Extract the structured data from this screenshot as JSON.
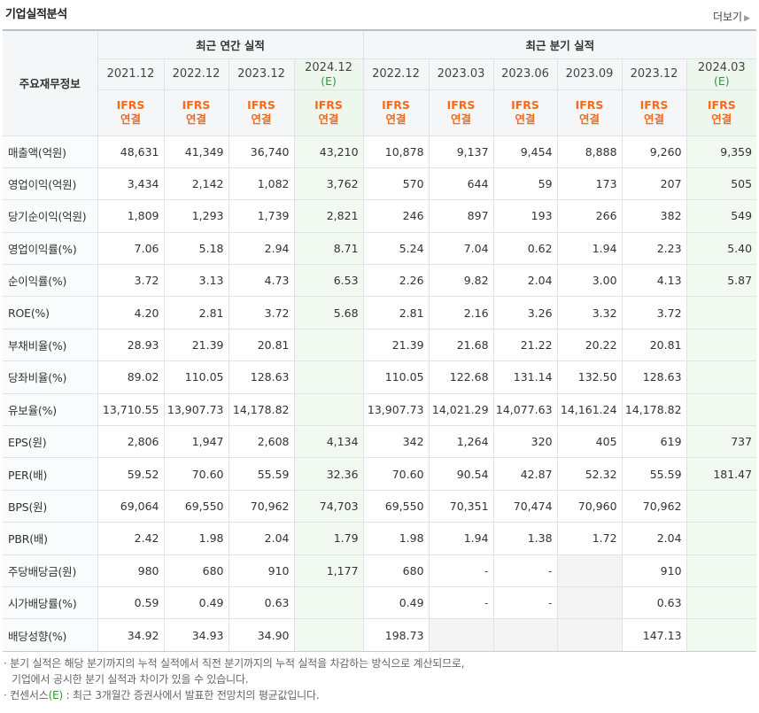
{
  "title": "기업실적분석",
  "more_label": "더보기",
  "header": {
    "row_label": "주요재무정보",
    "annual_group": "최근 연간 실적",
    "quarter_group": "최근 분기 실적",
    "annual_periods": [
      {
        "period": "2021.12",
        "est": ""
      },
      {
        "period": "2022.12",
        "est": ""
      },
      {
        "period": "2023.12",
        "est": ""
      },
      {
        "period": "2024.12",
        "est": "(E)"
      }
    ],
    "quarter_periods": [
      {
        "period": "2022.12",
        "est": ""
      },
      {
        "period": "2023.03",
        "est": ""
      },
      {
        "period": "2023.06",
        "est": ""
      },
      {
        "period": "2023.09",
        "est": ""
      },
      {
        "period": "2023.12",
        "est": ""
      },
      {
        "period": "2024.03",
        "est": "(E)"
      }
    ],
    "standard_top": "IFRS",
    "standard_bottom": "연결"
  },
  "rows": [
    {
      "label": "매출액(억원)",
      "values": [
        "48,631",
        "41,349",
        "36,740",
        "43,210",
        "10,878",
        "9,137",
        "9,454",
        "8,888",
        "9,260",
        "9,359"
      ],
      "sep": false
    },
    {
      "label": "영업이익(억원)",
      "values": [
        "3,434",
        "2,142",
        "1,082",
        "3,762",
        "570",
        "644",
        "59",
        "173",
        "207",
        "505"
      ],
      "sep": false
    },
    {
      "label": "당기순이익(억원)",
      "values": [
        "1,809",
        "1,293",
        "1,739",
        "2,821",
        "246",
        "897",
        "193",
        "266",
        "382",
        "549"
      ],
      "sep": false
    },
    {
      "label": "영업이익률(%)",
      "values": [
        "7.06",
        "5.18",
        "2.94",
        "8.71",
        "5.24",
        "7.04",
        "0.62",
        "1.94",
        "2.23",
        "5.40"
      ],
      "sep": true
    },
    {
      "label": "순이익률(%)",
      "values": [
        "3.72",
        "3.13",
        "4.73",
        "6.53",
        "2.26",
        "9.82",
        "2.04",
        "3.00",
        "4.13",
        "5.87"
      ],
      "sep": false
    },
    {
      "label": "ROE(%)",
      "values": [
        "4.20",
        "2.81",
        "3.72",
        "5.68",
        "2.81",
        "2.16",
        "3.26",
        "3.32",
        "3.72",
        ""
      ],
      "sep": false
    },
    {
      "label": "부채비율(%)",
      "values": [
        "28.93",
        "21.39",
        "20.81",
        "",
        "21.39",
        "21.68",
        "21.22",
        "20.22",
        "20.81",
        ""
      ],
      "sep": true
    },
    {
      "label": "당좌비율(%)",
      "values": [
        "89.02",
        "110.05",
        "128.63",
        "",
        "110.05",
        "122.68",
        "131.14",
        "132.50",
        "128.63",
        ""
      ],
      "sep": false
    },
    {
      "label": "유보율(%)",
      "values": [
        "13,710.55",
        "13,907.73",
        "14,178.82",
        "",
        "13,907.73",
        "14,021.29",
        "14,077.63",
        "14,161.24",
        "14,178.82",
        ""
      ],
      "sep": false
    },
    {
      "label": "EPS(원)",
      "values": [
        "2,806",
        "1,947",
        "2,608",
        "4,134",
        "342",
        "1,264",
        "320",
        "405",
        "619",
        "737"
      ],
      "sep": true
    },
    {
      "label": "PER(배)",
      "values": [
        "59.52",
        "70.60",
        "55.59",
        "32.36",
        "70.60",
        "90.54",
        "42.87",
        "52.32",
        "55.59",
        "181.47"
      ],
      "sep": false
    },
    {
      "label": "BPS(원)",
      "values": [
        "69,064",
        "69,550",
        "70,962",
        "74,703",
        "69,550",
        "70,351",
        "70,474",
        "70,960",
        "70,962",
        ""
      ],
      "sep": false
    },
    {
      "label": "PBR(배)",
      "values": [
        "2.42",
        "1.98",
        "2.04",
        "1.79",
        "1.98",
        "1.94",
        "1.38",
        "1.72",
        "2.04",
        ""
      ],
      "sep": false
    },
    {
      "label": "주당배당금(원)",
      "values": [
        "980",
        "680",
        "910",
        "1,177",
        "680",
        "-",
        "-",
        "",
        "910",
        ""
      ],
      "sep": true
    },
    {
      "label": "시가배당률(%)",
      "values": [
        "0.59",
        "0.49",
        "0.63",
        "",
        "0.49",
        "-",
        "-",
        "",
        "0.63",
        ""
      ],
      "sep": false
    },
    {
      "label": "배당성향(%)",
      "values": [
        "34.92",
        "34.93",
        "34.90",
        "",
        "198.73",
        "",
        "",
        "",
        "147.13",
        ""
      ],
      "sep": false
    }
  ],
  "gray_cells": [
    [
      13,
      7
    ],
    [
      14,
      7
    ],
    [
      15,
      5
    ],
    [
      15,
      6
    ],
    [
      15,
      7
    ]
  ],
  "notes": {
    "line1": "· 분기 실적은 해당 분기까지의 누적 실적에서 직전 분기까지의 누적 실적을 차감하는 방식으로 계산되므로,",
    "line2": "기업에서 공시한 분기 실적과 차이가 있을 수 있습니다.",
    "line3_prefix": "· 컨센서스",
    "line3_mark": "(E)",
    "line3_suffix": " : 최근 3개월간 증권사에서 발표한 전망치의 평균값입니다."
  }
}
